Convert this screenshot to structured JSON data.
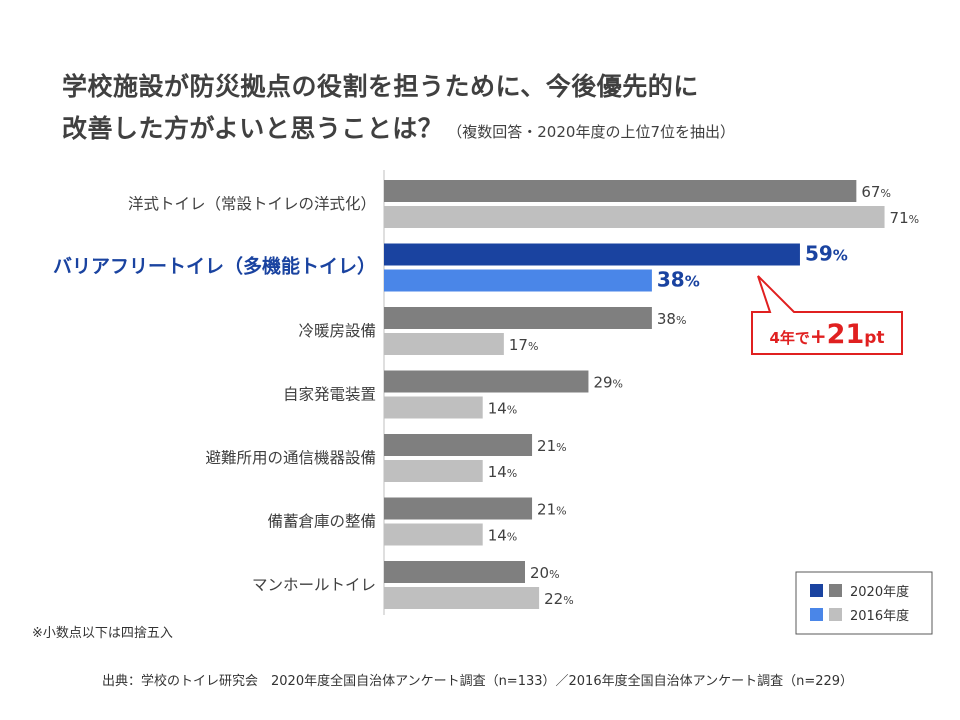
{
  "title": {
    "line1": "学校施設が防災拠点の役割を担うために、今後優先的に",
    "line2": "改善した方がよいと思うことは？",
    "subtitle": "（複数回答・2020年度の上位7位を抽出）"
  },
  "chart_data": {
    "type": "bar",
    "orientation": "horizontal",
    "categories": [
      "洋式トイレ（常設トイレの洋式化）",
      "バリアフリートイレ（多機能トイレ）",
      "冷暖房設備",
      "自家発電装置",
      "避難所用の通信機器設備",
      "備蓄倉庫の整備",
      "マンホールトイレ"
    ],
    "highlight_index": 1,
    "series": [
      {
        "name": "2020年度",
        "values": [
          67,
          59,
          38,
          29,
          21,
          21,
          20
        ]
      },
      {
        "name": "2016年度",
        "values": [
          71,
          38,
          17,
          14,
          14,
          14,
          22
        ]
      }
    ],
    "unit": "%",
    "xlim": [
      0,
      100
    ],
    "colors": {
      "series2020": "#7f7f7f",
      "series2016": "#bfbfbf",
      "highlight2020": "#1a43a0",
      "highlight2016": "#4a86e8",
      "callout": "#e02020"
    },
    "callout": {
      "prefix": "4年で",
      "sign": "+",
      "value": "21",
      "suffix": "pt"
    },
    "legend": {
      "position": "bottom-right",
      "labels": [
        "2020年度",
        "2016年度"
      ]
    }
  },
  "note": "※小数点以下は四捨五入",
  "source": "出典：学校のトイレ研究会　2020年度全国自治体アンケート調査（n=133）／2016年度全国自治体アンケート調査（n=229）"
}
